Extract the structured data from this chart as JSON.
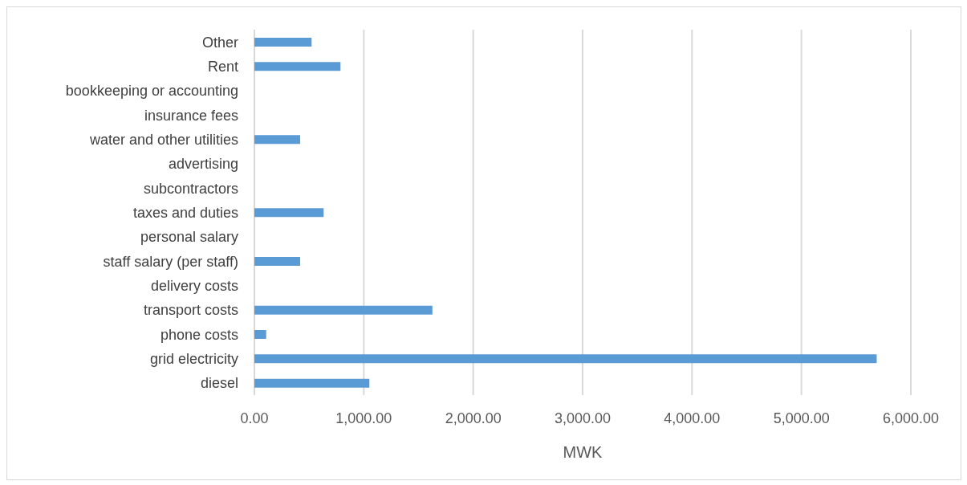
{
  "chart_data": {
    "type": "bar",
    "orientation": "horizontal",
    "xlabel": "MWK",
    "categories": [
      "Other",
      "Rent",
      "bookkeeping or accounting",
      "insurance fees",
      "water and other utilities",
      "advertising",
      "subcontractors",
      "taxes and duties",
      "personal salary",
      "staff salary (per staff)",
      "delivery costs",
      "transport costs",
      "phone costs",
      "grid electricity",
      "diesel"
    ],
    "values": [
      523,
      787,
      0,
      0,
      418,
      0,
      0,
      633,
      0,
      418,
      0,
      1627,
      108,
      5688,
      1051
    ],
    "color": "#5b9bd5",
    "xlim": [
      0,
      6000
    ],
    "xticks": [
      {
        "value": 0,
        "label": "0.00"
      },
      {
        "value": 1000,
        "label": "1,000.00"
      },
      {
        "value": 2000,
        "label": "2,000.00"
      },
      {
        "value": 3000,
        "label": "3,000.00"
      },
      {
        "value": 4000,
        "label": "4,000.00"
      },
      {
        "value": 5000,
        "label": "5,000.00"
      },
      {
        "value": 6000,
        "label": "6,000.00"
      }
    ],
    "grid": "x",
    "legend": false
  }
}
